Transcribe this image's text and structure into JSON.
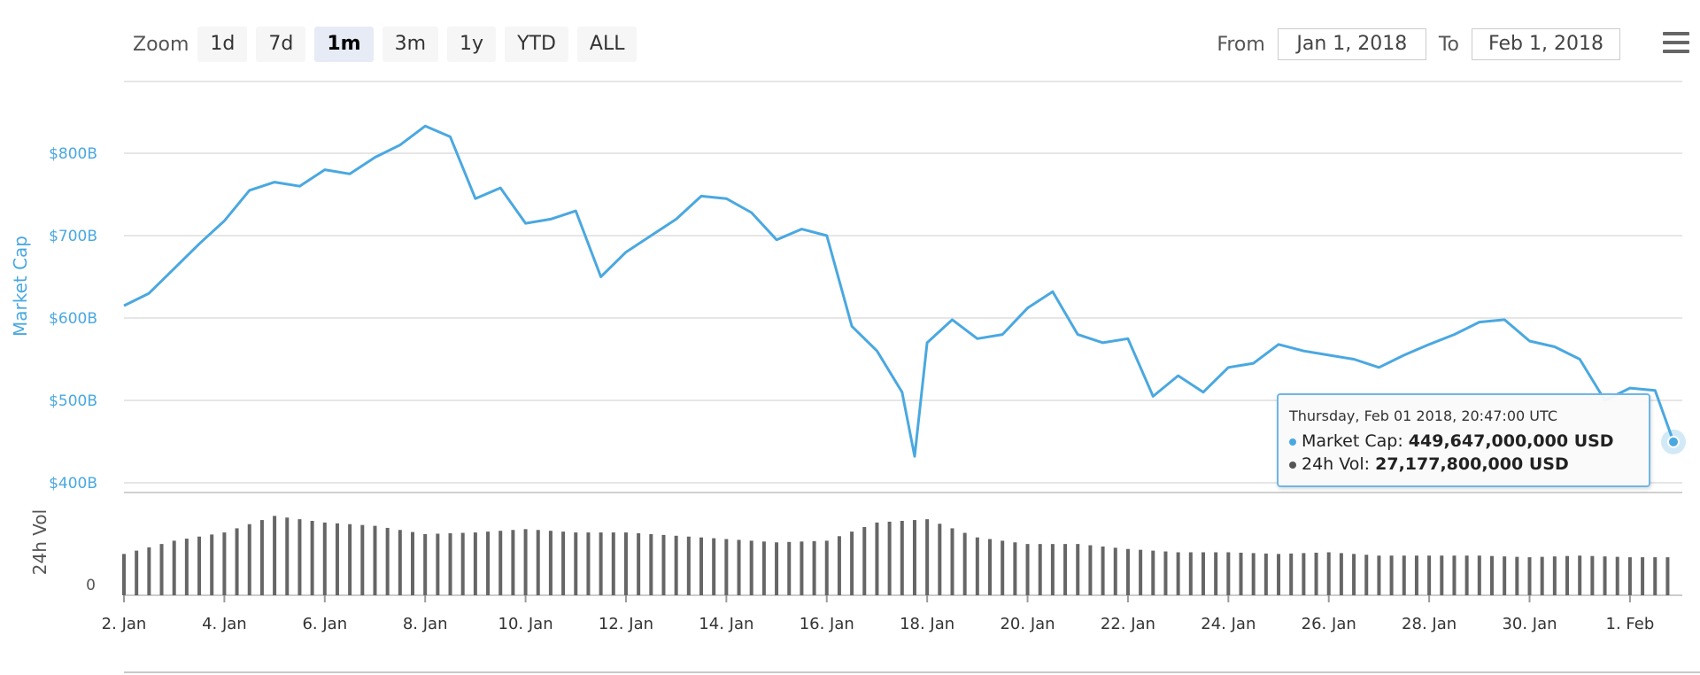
{
  "toolbar": {
    "zoom_label": "Zoom",
    "zoom_buttons": [
      "1d",
      "7d",
      "1m",
      "3m",
      "1y",
      "YTD",
      "ALL"
    ],
    "active_zoom": "1m",
    "from_label": "From",
    "from_value": "Jan 1, 2018",
    "to_label": "To",
    "to_value": "Feb 1, 2018",
    "menu_icon": "hamburger-menu-icon"
  },
  "tooltip": {
    "date": "Thursday, Feb 01 2018, 20:47:00 UTC",
    "market_cap_label": "Market Cap:",
    "market_cap_value": "449,647,000,000 USD",
    "vol_label": "24h Vol:",
    "vol_value": "27,177,800,000 USD"
  },
  "chart_data": {
    "type": "line",
    "colors": {
      "market_cap": "#4aa8e0",
      "volume": "#666666",
      "grid": "#e6e6e6"
    },
    "x_tick_labels": [
      "2. Jan",
      "4. Jan",
      "6. Jan",
      "8. Jan",
      "10. Jan",
      "12. Jan",
      "14. Jan",
      "16. Jan",
      "18. Jan",
      "20. Jan",
      "22. Jan",
      "24. Jan",
      "26. Jan",
      "28. Jan",
      "30. Jan",
      "1. Feb"
    ],
    "x_range": [
      "2018-01-02",
      "2018-02-01T20:47"
    ],
    "market_cap": {
      "ylabel": "Market Cap",
      "y_tick_labels": [
        "$400B",
        "$500B",
        "$600B",
        "$700B",
        "$800B"
      ],
      "y_ticks": [
        400,
        500,
        600,
        700,
        800
      ],
      "ylim": [
        400,
        900
      ],
      "unit": "billion USD",
      "series": [
        {
          "x": [
            "2018-01-02 00:00",
            "2018-01-02 12:00",
            "2018-01-03 00:00",
            "2018-01-03 12:00",
            "2018-01-04 00:00",
            "2018-01-04 12:00",
            "2018-01-05 00:00",
            "2018-01-05 12:00",
            "2018-01-06 00:00",
            "2018-01-06 12:00",
            "2018-01-07 00:00",
            "2018-01-07 12:00",
            "2018-01-08 00:00",
            "2018-01-08 12:00",
            "2018-01-09 00:00",
            "2018-01-09 12:00",
            "2018-01-10 00:00",
            "2018-01-10 12:00",
            "2018-01-11 00:00",
            "2018-01-11 12:00",
            "2018-01-12 00:00",
            "2018-01-12 12:00",
            "2018-01-13 00:00",
            "2018-01-13 12:00",
            "2018-01-14 00:00",
            "2018-01-14 12:00",
            "2018-01-15 00:00",
            "2018-01-15 12:00",
            "2018-01-16 00:00",
            "2018-01-16 12:00",
            "2018-01-17 00:00",
            "2018-01-17 12:00",
            "2018-01-17 18:00",
            "2018-01-18 00:00",
            "2018-01-18 12:00",
            "2018-01-19 00:00",
            "2018-01-19 12:00",
            "2018-01-20 00:00",
            "2018-01-20 12:00",
            "2018-01-21 00:00",
            "2018-01-21 12:00",
            "2018-01-22 00:00",
            "2018-01-22 12:00",
            "2018-01-23 00:00",
            "2018-01-23 12:00",
            "2018-01-24 00:00",
            "2018-01-24 12:00",
            "2018-01-25 00:00",
            "2018-01-25 12:00",
            "2018-01-26 00:00",
            "2018-01-26 12:00",
            "2018-01-27 00:00",
            "2018-01-27 12:00",
            "2018-01-28 00:00",
            "2018-01-28 12:00",
            "2018-01-29 00:00",
            "2018-01-29 12:00",
            "2018-01-30 00:00",
            "2018-01-30 12:00",
            "2018-01-31 00:00",
            "2018-01-31 12:00",
            "2018-02-01 00:00",
            "2018-02-01 12:00",
            "2018-02-01 20:47"
          ],
          "values": [
            615,
            630,
            660,
            690,
            718,
            755,
            765,
            760,
            780,
            775,
            795,
            810,
            833,
            820,
            745,
            758,
            715,
            720,
            730,
            650,
            680,
            700,
            720,
            748,
            745,
            728,
            695,
            708,
            700,
            590,
            560,
            510,
            432,
            570,
            598,
            575,
            580,
            612,
            632,
            580,
            570,
            575,
            505,
            530,
            510,
            540,
            545,
            568,
            560,
            555,
            550,
            540,
            555,
            568,
            580,
            595,
            598,
            572,
            565,
            550,
            500,
            515,
            512,
            450
          ]
        }
      ]
    },
    "volume": {
      "ylabel": "24h Vol",
      "y_tick_labels": [
        "0"
      ],
      "unit": "billion USD",
      "series": [
        {
          "x": [
            "2018-01-02",
            "2018-01-03",
            "2018-01-04",
            "2018-01-05",
            "2018-01-06",
            "2018-01-07",
            "2018-01-08",
            "2018-01-09",
            "2018-01-10",
            "2018-01-11",
            "2018-01-12",
            "2018-01-13",
            "2018-01-14",
            "2018-01-15",
            "2018-01-16",
            "2018-01-17",
            "2018-01-18",
            "2018-01-19",
            "2018-01-20",
            "2018-01-21",
            "2018-01-22",
            "2018-01-23",
            "2018-01-24",
            "2018-01-25",
            "2018-01-26",
            "2018-01-27",
            "2018-01-28",
            "2018-01-29",
            "2018-01-30",
            "2018-01-31",
            "2018-02-01"
          ],
          "values": [
            25,
            33,
            38,
            48,
            44,
            42,
            37,
            38,
            40,
            38,
            38,
            36,
            34,
            32,
            33,
            44,
            46,
            35,
            31,
            31,
            28,
            26,
            26,
            25,
            26,
            24,
            24,
            24,
            23,
            24,
            23
          ]
        }
      ]
    },
    "hovered_point": {
      "x": "2018-02-01 20:47",
      "market_cap": 449.647,
      "volume": 27.1778
    }
  }
}
